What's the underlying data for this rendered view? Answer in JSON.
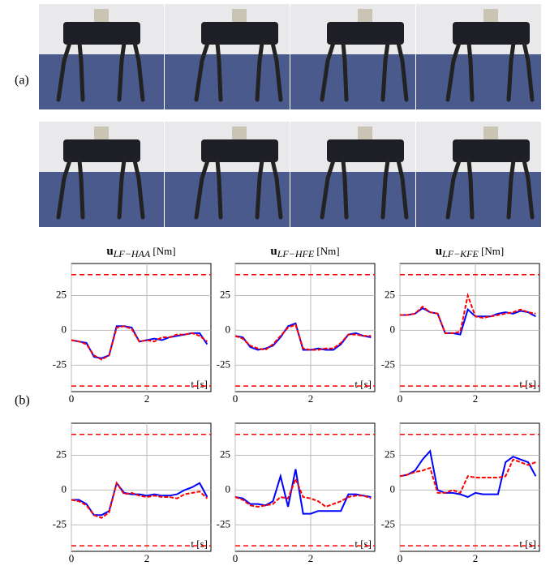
{
  "labels": {
    "a": "(a)",
    "b": "(b)"
  },
  "chart_data": [
    {
      "type": "line",
      "title": {
        "symbol": "u",
        "subscript": "LF−HAA",
        "unit": " [Nm]"
      },
      "xlabel": "t [s]",
      "x": [
        0,
        0.2,
        0.4,
        0.6,
        0.8,
        1.0,
        1.2,
        1.4,
        1.6,
        1.8,
        2.0,
        2.2,
        2.4,
        2.6,
        2.8,
        3.0,
        3.2,
        3.4,
        3.6
      ],
      "series": [
        {
          "color": "#0000ff",
          "values": [
            -7,
            -8,
            -9,
            -19,
            -20,
            -18,
            3,
            3,
            2,
            -8,
            -7,
            -6,
            -7,
            -5,
            -4,
            -3,
            -2,
            -2,
            -10
          ]
        },
        {
          "color": "#ff0000",
          "values": [
            -7,
            -8,
            -10,
            -18,
            -21,
            -18,
            2,
            3,
            1,
            -8,
            -7,
            -8,
            -5,
            -5,
            -3,
            -3,
            -2,
            -4,
            -8
          ]
        }
      ],
      "limits": [
        -40,
        40
      ],
      "xlim": [
        0,
        3.7
      ],
      "ylim": [
        -44,
        48
      ],
      "xticks": [
        0,
        2
      ],
      "yticks": [
        -25,
        0,
        25
      ],
      "grid": true
    },
    {
      "type": "line",
      "title": {
        "symbol": "u",
        "subscript": "LF−HFE",
        "unit": " [Nm]"
      },
      "xlabel": "t [s]",
      "x": [
        0,
        0.2,
        0.4,
        0.6,
        0.8,
        1.0,
        1.2,
        1.4,
        1.6,
        1.8,
        2.0,
        2.2,
        2.4,
        2.6,
        2.8,
        3.0,
        3.2,
        3.4,
        3.6
      ],
      "series": [
        {
          "color": "#0000ff",
          "values": [
            -4,
            -5,
            -12,
            -14,
            -13,
            -11,
            -5,
            3,
            5,
            -14,
            -14,
            -13,
            -14,
            -14,
            -10,
            -3,
            -2,
            -4,
            -5
          ]
        },
        {
          "color": "#ff0000",
          "values": [
            -4,
            -6,
            -11,
            -13,
            -14,
            -10,
            -4,
            2,
            4,
            -13,
            -14,
            -14,
            -13,
            -13,
            -9,
            -3,
            -3,
            -4,
            -4
          ]
        }
      ],
      "limits": [
        -40,
        40
      ],
      "xlim": [
        0,
        3.7
      ],
      "ylim": [
        -44,
        48
      ],
      "xticks": [
        0,
        2
      ],
      "yticks": [
        -25,
        0,
        25
      ],
      "grid": true
    },
    {
      "type": "line",
      "title": {
        "symbol": "u",
        "subscript": "LF−KFE",
        "unit": " [Nm]"
      },
      "xlabel": "t [s]",
      "x": [
        0,
        0.2,
        0.4,
        0.6,
        0.8,
        1.0,
        1.2,
        1.4,
        1.6,
        1.8,
        2.0,
        2.2,
        2.4,
        2.6,
        2.8,
        3.0,
        3.2,
        3.4,
        3.6
      ],
      "series": [
        {
          "color": "#0000ff",
          "values": [
            11,
            11,
            12,
            16,
            13,
            12,
            -2,
            -2,
            -3,
            15,
            10,
            10,
            10,
            12,
            13,
            12,
            14,
            13,
            10
          ]
        },
        {
          "color": "#ff0000",
          "values": [
            11,
            11,
            12,
            17,
            13,
            12,
            -2,
            -2,
            -1,
            25,
            10,
            9,
            10,
            11,
            12,
            13,
            15,
            13,
            12
          ]
        }
      ],
      "limits": [
        -40,
        40
      ],
      "xlim": [
        0,
        3.7
      ],
      "ylim": [
        -44,
        48
      ],
      "xticks": [
        0,
        2
      ],
      "yticks": [
        -25,
        0,
        25
      ],
      "grid": true
    },
    {
      "type": "line",
      "xlabel": "t [s]",
      "x": [
        0,
        0.2,
        0.4,
        0.6,
        0.8,
        1.0,
        1.2,
        1.4,
        1.6,
        1.8,
        2.0,
        2.2,
        2.4,
        2.6,
        2.8,
        3.0,
        3.2,
        3.4,
        3.6
      ],
      "series": [
        {
          "color": "#0000ff",
          "values": [
            -7,
            -7,
            -10,
            -18,
            -18,
            -15,
            5,
            -2,
            -3,
            -3,
            -4,
            -3,
            -4,
            -4,
            -3,
            0,
            2,
            5,
            -5
          ]
        },
        {
          "color": "#ff0000",
          "values": [
            -7,
            -8,
            -11,
            -18,
            -20,
            -16,
            5,
            -3,
            -2,
            -4,
            -5,
            -4,
            -5,
            -5,
            -6,
            -3,
            -2,
            -1,
            -6
          ]
        }
      ],
      "limits": [
        -40,
        40
      ],
      "xlim": [
        0,
        3.7
      ],
      "ylim": [
        -44,
        48
      ],
      "xticks": [
        0,
        2
      ],
      "yticks": [
        -25,
        0,
        25
      ],
      "grid": true
    },
    {
      "type": "line",
      "xlabel": "t [s]",
      "x": [
        0,
        0.2,
        0.4,
        0.6,
        0.8,
        1.0,
        1.2,
        1.4,
        1.6,
        1.8,
        2.0,
        2.2,
        2.4,
        2.6,
        2.8,
        3.0,
        3.2,
        3.4,
        3.6
      ],
      "series": [
        {
          "color": "#0000ff",
          "values": [
            -5,
            -6,
            -10,
            -10,
            -11,
            -8,
            10,
            -12,
            15,
            -17,
            -17,
            -15,
            -15,
            -15,
            -15,
            -3,
            -3,
            -4,
            -5
          ]
        },
        {
          "color": "#ff0000",
          "values": [
            -5,
            -7,
            -11,
            -12,
            -11,
            -10,
            -5,
            -6,
            8,
            -5,
            -6,
            -8,
            -12,
            -10,
            -8,
            -5,
            -4,
            -4,
            -6
          ]
        }
      ],
      "limits": [
        -40,
        40
      ],
      "xlim": [
        0,
        3.7
      ],
      "ylim": [
        -44,
        48
      ],
      "xticks": [
        0,
        2
      ],
      "yticks": [
        -25,
        0,
        25
      ],
      "grid": true
    },
    {
      "type": "line",
      "xlabel": "t [s]",
      "x": [
        0,
        0.2,
        0.4,
        0.6,
        0.8,
        1.0,
        1.2,
        1.4,
        1.6,
        1.8,
        2.0,
        2.2,
        2.4,
        2.6,
        2.8,
        3.0,
        3.2,
        3.4,
        3.6
      ],
      "series": [
        {
          "color": "#0000ff",
          "values": [
            10,
            11,
            14,
            22,
            28,
            0,
            -2,
            -2,
            -3,
            -5,
            -2,
            -3,
            -3,
            -3,
            20,
            24,
            22,
            20,
            10
          ]
        },
        {
          "color": "#ff0000",
          "values": [
            10,
            11,
            13,
            14,
            16,
            -2,
            -2,
            0,
            -2,
            10,
            9,
            9,
            9,
            9,
            10,
            22,
            20,
            18,
            20
          ]
        }
      ],
      "limits": [
        -40,
        40
      ],
      "xlim": [
        0,
        3.7
      ],
      "ylim": [
        -44,
        48
      ],
      "xticks": [
        0,
        2
      ],
      "yticks": [
        -25,
        0,
        25
      ],
      "grid": true
    }
  ]
}
